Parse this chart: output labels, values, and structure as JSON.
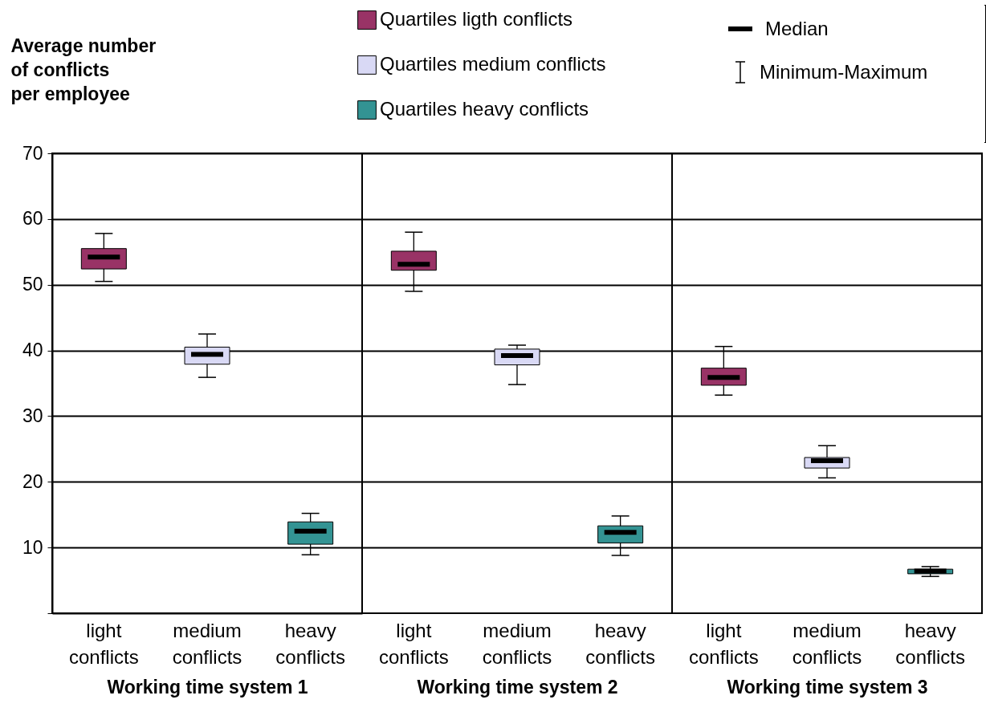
{
  "chart_data": [
    {
      "type": "box",
      "ylabel": "Average number of conflicts per employee",
      "xlabel": "Working time system 1",
      "categories": [
        "light conflicts",
        "medium conflicts",
        "heavy conflicts"
      ],
      "ylim": [
        0,
        70
      ],
      "yticks": [
        {
          "value": 0,
          "label": null
        },
        10,
        20,
        30,
        40,
        50,
        60,
        70
      ],
      "grid": "y",
      "legend": "top",
      "annotations": [
        "Median",
        "Minimum-Maximum"
      ],
      "series": [
        {
          "name": "Quartiles ligth conflicts",
          "color": "#993366",
          "boxes": [
            {
              "low": 50.5,
              "q1": 52.4,
              "median": 54.2,
              "q3": 55.5,
              "high": 57.8
            },
            null,
            null
          ]
        },
        {
          "name": "Quartiles medium conflicts",
          "color": "#d9d9f5",
          "boxes": [
            null,
            {
              "low": 35.9,
              "q1": 37.9,
              "median": 39.4,
              "q3": 40.5,
              "high": 42.5
            },
            null
          ]
        },
        {
          "name": "Quartiles heavy  conflicts",
          "color": "#339393",
          "boxes": [
            null,
            null,
            {
              "low": 8.9,
              "q1": 10.5,
              "median": 12.5,
              "q3": 13.9,
              "high": 15.2
            }
          ]
        }
      ]
    },
    {
      "type": "box",
      "xlabel": "Working time system 2",
      "categories": [
        "light conflicts",
        "medium conflicts",
        "heavy conflicts"
      ],
      "ylim": [
        0,
        70
      ],
      "yticks": [
        10,
        20,
        30,
        40,
        50,
        60,
        70
      ],
      "grid": "y",
      "tick_labels": "x",
      "series": [
        {
          "color": "#993366",
          "boxes": [
            {
              "low": 49,
              "q1": 52.2,
              "median": 53.1,
              "q3": 55.1,
              "high": 58
            },
            null,
            null
          ]
        },
        {
          "color": "#d9d9f5",
          "boxes": [
            null,
            {
              "low": 34.8,
              "q1": 37.8,
              "median": 39.2,
              "q3": 40.2,
              "high": 40.8
            },
            null
          ]
        },
        {
          "color": "#339393",
          "boxes": [
            null,
            null,
            {
              "low": 8.8,
              "q1": 10.7,
              "median": 12.3,
              "q3": 13.3,
              "high": 14.8
            }
          ]
        }
      ]
    },
    {
      "type": "box",
      "xlabel": "Working time system 3",
      "categories": [
        "light conflicts",
        "medium conflicts",
        "heavy conflicts"
      ],
      "ylim": [
        0,
        70
      ],
      "yticks": [
        10,
        20,
        30,
        40,
        50,
        60,
        70
      ],
      "grid": "y",
      "tick_labels": "x",
      "series": [
        {
          "color": "#993366",
          "boxes": [
            {
              "low": 33.2,
              "q1": 34.7,
              "median": 35.9,
              "q3": 37.3,
              "high": 40.6
            },
            null,
            null
          ]
        },
        {
          "color": "#d9d9f5",
          "boxes": [
            null,
            {
              "low": 20.6,
              "q1": 22.1,
              "median": 23.2,
              "q3": 23.7,
              "high": 25.5
            },
            null
          ]
        },
        {
          "color": "#339393",
          "boxes": [
            null,
            null,
            {
              "low": 5.6,
              "q1": 6.0,
              "median": 6.4,
              "q3": 6.7,
              "high": 7.1
            }
          ]
        }
      ]
    }
  ]
}
